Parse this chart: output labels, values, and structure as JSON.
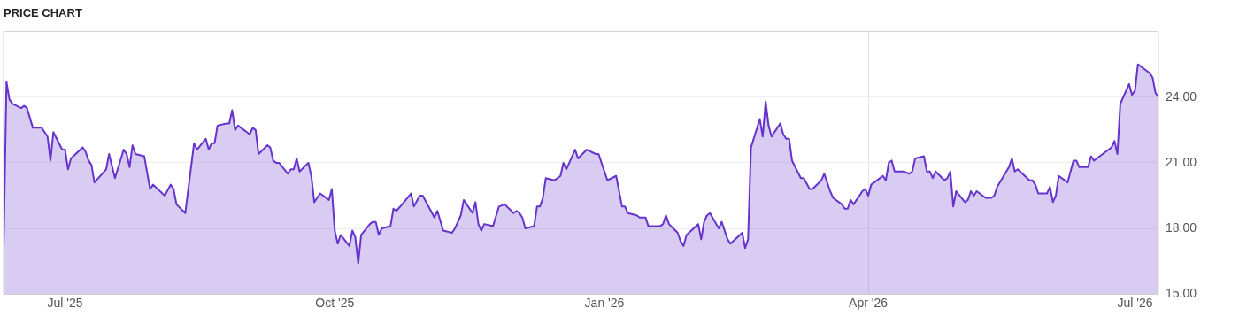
{
  "chart_data": {
    "type": "area",
    "title": "PRICE CHART",
    "x": [
      "2025-06-10",
      "2025-06-11",
      "2025-06-12",
      "2025-06-13",
      "2025-06-16",
      "2025-06-17",
      "2025-06-18",
      "2025-06-20",
      "2025-06-23",
      "2025-06-24",
      "2025-06-25",
      "2025-06-26",
      "2025-06-27",
      "2025-06-30",
      "2025-07-01",
      "2025-07-02",
      "2025-07-03",
      "2025-07-07",
      "2025-07-08",
      "2025-07-09",
      "2025-07-10",
      "2025-07-11",
      "2025-07-15",
      "2025-07-16",
      "2025-07-18",
      "2025-07-21",
      "2025-07-22",
      "2025-07-23",
      "2025-07-24",
      "2025-07-25",
      "2025-07-28",
      "2025-07-30",
      "2025-07-31",
      "2025-08-04",
      "2025-08-06",
      "2025-08-07",
      "2025-08-08",
      "2025-08-11",
      "2025-08-14",
      "2025-08-15",
      "2025-08-18",
      "2025-08-19",
      "2025-08-20",
      "2025-08-21",
      "2025-08-22",
      "2025-08-25",
      "2025-08-26",
      "2025-08-27",
      "2025-08-28",
      "2025-08-29",
      "2025-09-02",
      "2025-09-03",
      "2025-09-04",
      "2025-09-05",
      "2025-09-08",
      "2025-09-09",
      "2025-09-10",
      "2025-09-11",
      "2025-09-12",
      "2025-09-15",
      "2025-09-16",
      "2025-09-17",
      "2025-09-18",
      "2025-09-19",
      "2025-09-22",
      "2025-09-23",
      "2025-09-24",
      "2025-09-26",
      "2025-09-29",
      "2025-09-30",
      "2025-10-01",
      "2025-10-02",
      "2025-10-03",
      "2025-10-06",
      "2025-10-07",
      "2025-10-08",
      "2025-10-09",
      "2025-10-10",
      "2025-10-13",
      "2025-10-14",
      "2025-10-15",
      "2025-10-16",
      "2025-10-17",
      "2025-10-20",
      "2025-10-21",
      "2025-10-22",
      "2025-10-24",
      "2025-10-27",
      "2025-10-28",
      "2025-10-30",
      "2025-10-31",
      "2025-11-04",
      "2025-11-05",
      "2025-11-07",
      "2025-11-10",
      "2025-11-11",
      "2025-11-13",
      "2025-11-14",
      "2025-11-17",
      "2025-11-18",
      "2025-11-19",
      "2025-11-20",
      "2025-11-21",
      "2025-11-24",
      "2025-11-26",
      "2025-11-28",
      "2025-12-01",
      "2025-12-02",
      "2025-12-03",
      "2025-12-04",
      "2025-12-05",
      "2025-12-08",
      "2025-12-09",
      "2025-12-10",
      "2025-12-11",
      "2025-12-12",
      "2025-12-15",
      "2025-12-17",
      "2025-12-18",
      "2025-12-19",
      "2025-12-22",
      "2025-12-23",
      "2025-12-26",
      "2025-12-29",
      "2025-12-30",
      "2026-01-02",
      "2026-01-05",
      "2026-01-07",
      "2026-01-08",
      "2026-01-09",
      "2026-01-12",
      "2026-01-13",
      "2026-01-14",
      "2026-01-15",
      "2026-01-16",
      "2026-01-20",
      "2026-01-21",
      "2026-01-22",
      "2026-01-23",
      "2026-01-26",
      "2026-01-27",
      "2026-01-28",
      "2026-01-29",
      "2026-02-02",
      "2026-02-03",
      "2026-02-04",
      "2026-02-05",
      "2026-02-06",
      "2026-02-09",
      "2026-02-10",
      "2026-02-12",
      "2026-02-13",
      "2026-02-17",
      "2026-02-18",
      "2026-02-19",
      "2026-02-20",
      "2026-02-23",
      "2026-02-24",
      "2026-02-25",
      "2026-02-26",
      "2026-02-27",
      "2026-03-02",
      "2026-03-03",
      "2026-03-04",
      "2026-03-05",
      "2026-03-06",
      "2026-03-09",
      "2026-03-10",
      "2026-03-12",
      "2026-03-13",
      "2026-03-16",
      "2026-03-17",
      "2026-03-19",
      "2026-03-20",
      "2026-03-23",
      "2026-03-24",
      "2026-03-25",
      "2026-03-26",
      "2026-03-27",
      "2026-03-30",
      "2026-03-31",
      "2026-04-01",
      "2026-04-02",
      "2026-04-06",
      "2026-04-07",
      "2026-04-08",
      "2026-04-09",
      "2026-04-10",
      "2026-04-13",
      "2026-04-15",
      "2026-04-16",
      "2026-04-17",
      "2026-04-20",
      "2026-04-21",
      "2026-04-22",
      "2026-04-23",
      "2026-04-24",
      "2026-04-27",
      "2026-04-28",
      "2026-04-29",
      "2026-04-30",
      "2026-05-01",
      "2026-05-04",
      "2026-05-05",
      "2026-05-06",
      "2026-05-07",
      "2026-05-08",
      "2026-05-11",
      "2026-05-12",
      "2026-05-13",
      "2026-05-14",
      "2026-05-15",
      "2026-05-19",
      "2026-05-20",
      "2026-05-21",
      "2026-05-22",
      "2026-05-26",
      "2026-05-27",
      "2026-05-28",
      "2026-05-29",
      "2026-06-01",
      "2026-06-02",
      "2026-06-03",
      "2026-06-04",
      "2026-06-05",
      "2026-06-08",
      "2026-06-10",
      "2026-06-11",
      "2026-06-12",
      "2026-06-15",
      "2026-06-16",
      "2026-06-17",
      "2026-06-18",
      "2026-06-22",
      "2026-06-23",
      "2026-06-24",
      "2026-06-25",
      "2026-06-26",
      "2026-06-29",
      "2026-06-30",
      "2026-07-01",
      "2026-07-02",
      "2026-07-06",
      "2026-07-07",
      "2026-07-08",
      "2026-07-09"
    ],
    "series": [
      {
        "color": "#6633cc",
        "values": [
          17.0,
          24.7,
          23.9,
          23.7,
          23.5,
          23.6,
          23.5,
          22.6,
          22.6,
          22.4,
          22.2,
          21.1,
          22.4,
          21.6,
          21.6,
          20.7,
          21.2,
          21.7,
          21.5,
          21.1,
          20.9,
          20.1,
          20.7,
          21.4,
          20.3,
          21.6,
          21.4,
          20.8,
          21.8,
          21.4,
          21.3,
          19.8,
          20.0,
          19.5,
          20.0,
          19.8,
          19.1,
          18.7,
          21.9,
          21.6,
          22.1,
          21.6,
          21.9,
          21.9,
          22.7,
          22.8,
          22.8,
          23.4,
          22.5,
          22.7,
          22.3,
          22.6,
          22.5,
          21.4,
          21.8,
          21.7,
          21.1,
          21.0,
          21.0,
          20.5,
          20.7,
          20.7,
          21.2,
          20.6,
          21.0,
          20.4,
          19.2,
          19.6,
          19.3,
          19.8,
          17.9,
          17.3,
          17.7,
          17.2,
          17.9,
          17.6,
          16.4,
          17.7,
          18.2,
          18.3,
          18.3,
          17.7,
          18.0,
          18.1,
          18.9,
          18.8,
          19.1,
          19.6,
          19.0,
          19.5,
          19.5,
          18.5,
          18.8,
          17.9,
          17.8,
          18.0,
          18.6,
          19.3,
          18.7,
          19.2,
          18.2,
          17.9,
          18.2,
          18.1,
          19.0,
          19.1,
          18.7,
          18.8,
          18.7,
          18.5,
          18.0,
          18.1,
          19.0,
          19.0,
          19.4,
          20.3,
          20.2,
          20.4,
          21.0,
          20.7,
          21.6,
          21.2,
          21.6,
          21.4,
          21.4,
          20.2,
          20.4,
          19.0,
          19.0,
          18.7,
          18.6,
          18.5,
          18.5,
          18.5,
          18.1,
          18.1,
          18.2,
          18.6,
          18.2,
          17.8,
          17.4,
          17.2,
          17.7,
          18.2,
          17.5,
          18.3,
          18.6,
          18.7,
          18.0,
          18.3,
          17.5,
          17.3,
          17.8,
          17.1,
          17.5,
          21.7,
          23.0,
          22.2,
          23.8,
          22.7,
          22.2,
          22.8,
          22.3,
          22.1,
          22.1,
          21.1,
          20.3,
          20.3,
          19.8,
          19.8,
          20.2,
          20.5,
          19.7,
          19.4,
          19.1,
          18.9,
          18.9,
          19.3,
          19.1,
          19.7,
          19.8,
          19.5,
          20.0,
          20.4,
          20.2,
          21.0,
          21.1,
          20.6,
          20.6,
          20.5,
          20.6,
          21.2,
          21.3,
          20.6,
          20.6,
          20.3,
          20.6,
          20.2,
          20.3,
          20.6,
          19.0,
          19.7,
          19.2,
          19.3,
          19.7,
          19.5,
          19.7,
          19.4,
          19.4,
          19.4,
          19.5,
          19.9,
          20.8,
          21.2,
          20.6,
          20.7,
          20.2,
          20.2,
          20.0,
          19.6,
          19.6,
          19.9,
          19.2,
          19.5,
          20.4,
          20.1,
          21.1,
          21.1,
          20.8,
          20.8,
          21.3,
          21.1,
          21.2,
          21.6,
          21.7,
          22.0,
          21.4,
          23.7,
          24.6,
          24.1,
          24.3,
          25.5,
          25.1,
          24.9,
          24.2,
          24.0
        ]
      }
    ],
    "xlim": [
      "2025-06-10",
      "2026-07-09"
    ],
    "xticks": [
      {
        "value": "2025-07-01",
        "label": "Jul '25"
      },
      {
        "value": "2025-10-01",
        "label": "Oct '25"
      },
      {
        "value": "2026-01-01",
        "label": "Jan '26"
      },
      {
        "value": "2026-04-01",
        "label": "Apr '26"
      },
      {
        "value": "2026-07-01",
        "label": "Jul '26"
      }
    ],
    "ylim": [
      15,
      27
    ],
    "yticks": [
      {
        "value": 15,
        "label": "15.00"
      },
      {
        "value": 18,
        "label": "18.00"
      },
      {
        "value": 21,
        "label": "21.00"
      },
      {
        "value": 24,
        "label": "24.00"
      },
      {
        "value": 27,
        "label": null
      }
    ],
    "grid": true
  }
}
